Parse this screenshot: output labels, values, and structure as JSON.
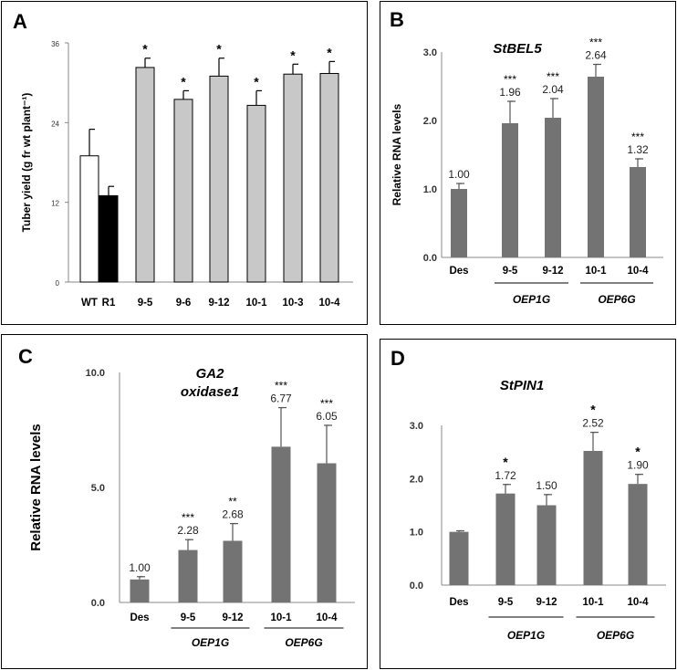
{
  "chart_data": [
    {
      "panel": "A",
      "type": "bar",
      "title": "",
      "ylabel": "Tuber yield (g fr wt plant⁻¹)",
      "xlabel": "",
      "ylim": [
        0,
        36
      ],
      "yticks": [
        0,
        12,
        24,
        36
      ],
      "categories": [
        "WT",
        "R1",
        "9-5",
        "9-6",
        "9-12",
        "10-1",
        "10-3",
        "10-4"
      ],
      "values": [
        19,
        13,
        32.3,
        27.5,
        31,
        26.6,
        31.3,
        31.4
      ],
      "errors": [
        4,
        1.4,
        1.4,
        1.3,
        2.7,
        2.2,
        1.5,
        1.8
      ],
      "bar_colors": [
        "#ffffff",
        "#000000",
        "#c8c8c8",
        "#c8c8c8",
        "#c8c8c8",
        "#c8c8c8",
        "#c8c8c8",
        "#c8c8c8"
      ],
      "significance": [
        "",
        "",
        "*",
        "*",
        "*",
        "*",
        "*",
        "*"
      ],
      "value_labels": [
        "",
        "",
        "",
        "",
        "",
        "",
        "",
        ""
      ],
      "groups": []
    },
    {
      "panel": "B",
      "type": "bar",
      "title": "StBEL5",
      "ylabel": "Relative RNA levels",
      "xlabel": "",
      "ylim": [
        0,
        3
      ],
      "yticks": [
        "0.0",
        "1.0",
        "2.0",
        "3.0"
      ],
      "categories": [
        "Des",
        "9-5",
        "9-12",
        "10-1",
        "10-4"
      ],
      "values": [
        1.0,
        1.96,
        2.04,
        2.64,
        1.32
      ],
      "errors": [
        0.08,
        0.32,
        0.28,
        0.18,
        0.12
      ],
      "bar_colors": [
        "#737373",
        "#737373",
        "#737373",
        "#737373",
        "#737373"
      ],
      "significance": [
        "",
        "***",
        "***",
        "***",
        "***"
      ],
      "value_labels": [
        "1.00",
        "1.96",
        "2.04",
        "2.64",
        "1.32"
      ],
      "groups": [
        {
          "label": "OEP1G",
          "members": [
            1,
            2
          ]
        },
        {
          "label": "OEP6G",
          "members": [
            3,
            4
          ]
        }
      ]
    },
    {
      "panel": "C",
      "type": "bar",
      "title": "GA2 oxidase1",
      "title_lines": [
        "GA2",
        "oxidase1"
      ],
      "ylabel": "Relative RNA levels",
      "xlabel": "",
      "ylim": [
        0,
        10
      ],
      "yticks": [
        "0.0",
        "5.0",
        "10.0"
      ],
      "categories": [
        "Des",
        "9-5",
        "9-12",
        "10-1",
        "10-4"
      ],
      "values": [
        1.0,
        2.28,
        2.68,
        6.77,
        6.05
      ],
      "errors": [
        0.12,
        0.45,
        0.75,
        1.7,
        1.65
      ],
      "bar_colors": [
        "#737373",
        "#737373",
        "#737373",
        "#737373",
        "#737373"
      ],
      "significance": [
        "",
        "***",
        "**",
        "***",
        "***"
      ],
      "value_labels": [
        "1.00",
        "2.28",
        "2.68",
        "6.77",
        "6.05"
      ],
      "groups": [
        {
          "label": "OEP1G",
          "members": [
            1,
            2
          ]
        },
        {
          "label": "OEP6G",
          "members": [
            3,
            4
          ]
        }
      ]
    },
    {
      "panel": "D",
      "type": "bar",
      "title": "StPIN1",
      "ylabel": "",
      "xlabel": "",
      "ylim": [
        0,
        3
      ],
      "yticks": [
        "0.0",
        "1.0",
        "2.0",
        "3.0"
      ],
      "categories": [
        "Des",
        "9-5",
        "9-12",
        "10-1",
        "10-4"
      ],
      "values": [
        1.0,
        1.72,
        1.5,
        2.52,
        1.9
      ],
      "errors": [
        0.02,
        0.17,
        0.2,
        0.35,
        0.18
      ],
      "bar_colors": [
        "#737373",
        "#737373",
        "#737373",
        "#737373",
        "#737373"
      ],
      "significance": [
        "",
        "*",
        "",
        "*",
        "*"
      ],
      "value_labels": [
        "",
        "1.72",
        "1.50",
        "2.52",
        "1.90"
      ],
      "groups": [
        {
          "label": "OEP1G",
          "members": [
            1,
            2
          ]
        },
        {
          "label": "OEP6G",
          "members": [
            3,
            4
          ]
        }
      ]
    }
  ]
}
